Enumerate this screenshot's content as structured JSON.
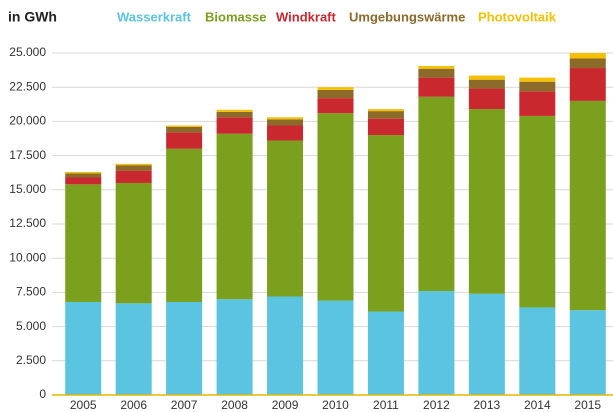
{
  "chart_data": {
    "type": "bar",
    "stacked": true,
    "title": "in GWh",
    "categories": [
      "2005",
      "2006",
      "2007",
      "2008",
      "2009",
      "2010",
      "2011",
      "2012",
      "2013",
      "2014",
      "2015"
    ],
    "series": [
      {
        "name": "Wasserkraft",
        "color": "#5bc4e1",
        "values": [
          6800,
          6700,
          6800,
          7000,
          7200,
          6900,
          6100,
          7600,
          7400,
          6400,
          6200
        ]
      },
      {
        "name": "Biomasse",
        "color": "#7aa01e",
        "values": [
          8600,
          8800,
          11200,
          12100,
          11400,
          13700,
          12900,
          14200,
          13500,
          14000,
          15300
        ]
      },
      {
        "name": "Windkraft",
        "color": "#c8282e",
        "values": [
          500,
          900,
          1200,
          1200,
          1100,
          1100,
          1200,
          1400,
          1500,
          1800,
          2400
        ]
      },
      {
        "name": "Umgebungswärme",
        "color": "#8b6a2a",
        "values": [
          300,
          400,
          400,
          400,
          450,
          600,
          550,
          650,
          650,
          700,
          700
        ]
      },
      {
        "name": "Photovoltaik",
        "color": "#f5c000",
        "values": [
          100,
          100,
          100,
          150,
          150,
          200,
          150,
          200,
          300,
          300,
          400
        ]
      }
    ],
    "ylim": [
      0,
      25000
    ],
    "yticks": [
      0,
      {
        "value": 2500,
        "label": "2.500"
      },
      {
        "value": 5000,
        "label": "5.000"
      },
      {
        "value": 7500,
        "label": "7.500"
      },
      {
        "value": 10000,
        "label": "10.000"
      },
      {
        "value": 12500,
        "label": "12.500"
      },
      {
        "value": 15000,
        "label": "15.000"
      },
      {
        "value": 17500,
        "label": "17.500"
      },
      {
        "value": 20000,
        "label": "20.000"
      },
      {
        "value": 22500,
        "label": "22.500"
      },
      {
        "value": 25000,
        "label": "25.000"
      }
    ],
    "grid": true
  }
}
